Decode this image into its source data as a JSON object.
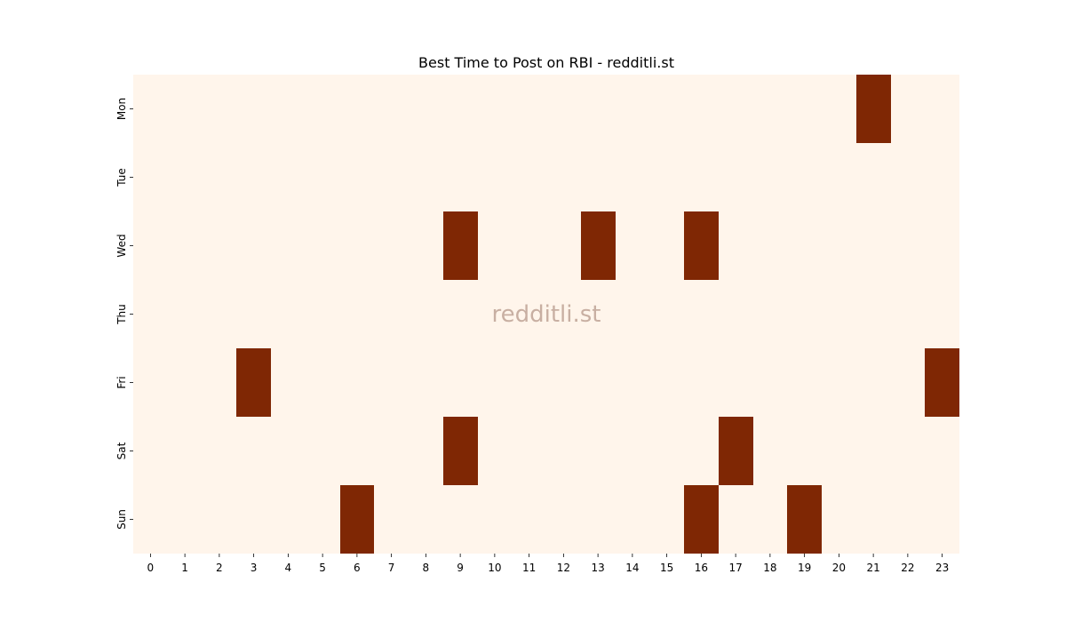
{
  "chart_data": {
    "type": "heatmap",
    "title": "Best Time to Post on RBI - redditli.st",
    "xlabel": "",
    "ylabel": "",
    "x_categories": [
      "0",
      "1",
      "2",
      "3",
      "4",
      "5",
      "6",
      "7",
      "8",
      "9",
      "10",
      "11",
      "12",
      "13",
      "14",
      "15",
      "16",
      "17",
      "18",
      "19",
      "20",
      "21",
      "22",
      "23"
    ],
    "y_categories": [
      "Mon",
      "Tue",
      "Wed",
      "Thu",
      "Fri",
      "Sat",
      "Sun"
    ],
    "values": [
      [
        0,
        0,
        0,
        0,
        0,
        0,
        0,
        0,
        0,
        0,
        0,
        0,
        0,
        0,
        0,
        0,
        0,
        0,
        0,
        0,
        0,
        1,
        0,
        0
      ],
      [
        0,
        0,
        0,
        0,
        0,
        0,
        0,
        0,
        0,
        0,
        0,
        0,
        0,
        0,
        0,
        0,
        0,
        0,
        0,
        0,
        0,
        0,
        0,
        0
      ],
      [
        0,
        0,
        0,
        0,
        0,
        0,
        0,
        0,
        0,
        1,
        0,
        0,
        0,
        1,
        0,
        0,
        1,
        0,
        0,
        0,
        0,
        0,
        0,
        0
      ],
      [
        0,
        0,
        0,
        0,
        0,
        0,
        0,
        0,
        0,
        0,
        0,
        0,
        0,
        0,
        0,
        0,
        0,
        0,
        0,
        0,
        0,
        0,
        0,
        0
      ],
      [
        0,
        0,
        0,
        1,
        0,
        0,
        0,
        0,
        0,
        0,
        0,
        0,
        0,
        0,
        0,
        0,
        0,
        0,
        0,
        0,
        0,
        0,
        0,
        1
      ],
      [
        0,
        0,
        0,
        0,
        0,
        0,
        0,
        0,
        0,
        1,
        0,
        0,
        0,
        0,
        0,
        0,
        0,
        1,
        0,
        0,
        0,
        0,
        0,
        0
      ],
      [
        0,
        0,
        0,
        0,
        0,
        0,
        1,
        0,
        0,
        0,
        0,
        0,
        0,
        0,
        0,
        0,
        1,
        0,
        0,
        1,
        0,
        0,
        0,
        0
      ]
    ],
    "colorbar": false,
    "grid": false,
    "colors": {
      "low": "#fff5eb",
      "high": "#7f2704"
    },
    "watermark": "redditli.st"
  }
}
